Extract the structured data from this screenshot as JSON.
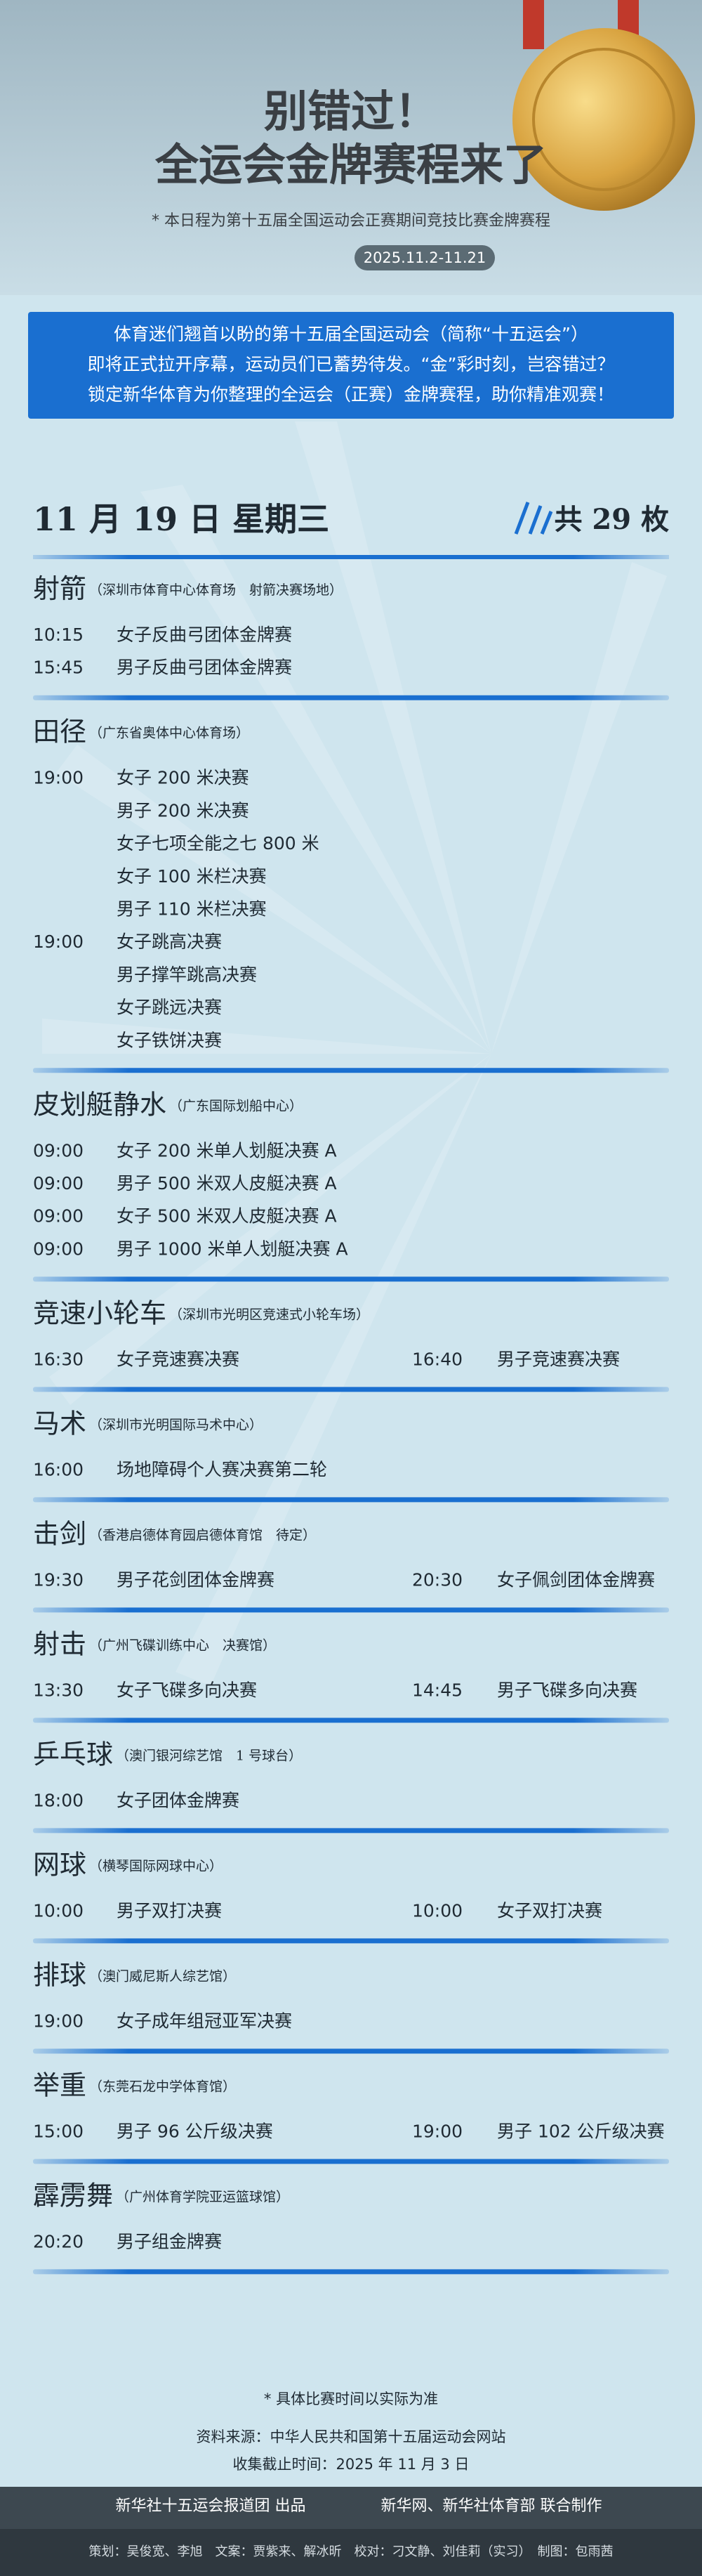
{
  "header": {
    "title_line1": "别错过！",
    "title_line2": "全运会金牌赛程来了",
    "note": "* 本日程为第十五届全国运动会正赛期间竞技比赛金牌赛程",
    "date_range": "2025.11.2-11.21"
  },
  "intro": [
    "体育迷们翘首以盼的第十五届全国运动会（简称“十五运会”）",
    "即将正式拉开序幕，运动员们已蓄势待发。“金”彩时刻，岂容错过？",
    "锁定新华体育为你整理的全运会（正赛）金牌赛程，助你精准观赛！"
  ],
  "day": {
    "date": "11 月 19 日 星期三",
    "total": "共 29 枚"
  },
  "sections": [
    {
      "sport": "射箭",
      "venue": "（深圳市体育中心体育场　射箭决赛场地）",
      "rows": [
        [
          {
            "time": "10:15",
            "event": "女子反曲弓团体金牌赛"
          }
        ],
        [
          {
            "time": "15:45",
            "event": "男子反曲弓团体金牌赛"
          }
        ]
      ]
    },
    {
      "sport": "田径",
      "venue": "（广东省奥体中心体育场）",
      "rows": [
        [
          {
            "time": "19:00",
            "event": "女子 200 米决赛"
          }
        ],
        [
          {
            "event": "男子 200 米决赛"
          }
        ],
        [
          {
            "event": "女子七项全能之七 800 米"
          }
        ],
        [
          {
            "event": "女子 100 米栏决赛"
          }
        ],
        [
          {
            "event": "男子 110 米栏决赛"
          }
        ],
        [
          {
            "time": "19:00",
            "event": "女子跳高决赛"
          }
        ],
        [
          {
            "event": "男子撑竿跳高决赛"
          }
        ],
        [
          {
            "event": "女子跳远决赛"
          }
        ],
        [
          {
            "event": "女子铁饼决赛"
          }
        ]
      ]
    },
    {
      "sport": "皮划艇静水",
      "venue": "（广东国际划船中心）",
      "rows": [
        [
          {
            "time": "09:00",
            "event": "女子 200 米单人划艇决赛 A"
          }
        ],
        [
          {
            "time": "09:00",
            "event": "男子 500 米双人皮艇决赛 A"
          }
        ],
        [
          {
            "time": "09:00",
            "event": "女子 500 米双人皮艇决赛 A"
          }
        ],
        [
          {
            "time": "09:00",
            "event": "男子 1000 米单人划艇决赛 A"
          }
        ]
      ]
    },
    {
      "sport": "竞速小轮车",
      "venue": "（深圳市光明区竞速式小轮车场）",
      "rows": [
        [
          {
            "time": "16:30",
            "event": "女子竞速赛决赛"
          },
          {
            "time": "16:40",
            "event": "男子竞速赛决赛"
          }
        ]
      ]
    },
    {
      "sport": "马术",
      "venue": "（深圳市光明国际马术中心）",
      "rows": [
        [
          {
            "time": "16:00",
            "event": "场地障碍个人赛决赛第二轮"
          }
        ]
      ]
    },
    {
      "sport": "击剑",
      "venue": "（香港启德体育园启德体育馆　待定）",
      "rows": [
        [
          {
            "time": "19:30",
            "event": "男子花剑团体金牌赛"
          },
          {
            "time": "20:30",
            "event": "女子佩剑团体金牌赛"
          }
        ]
      ]
    },
    {
      "sport": "射击",
      "venue": "（广州飞碟训练中心　决赛馆）",
      "rows": [
        [
          {
            "time": "13:30",
            "event": "女子飞碟多向决赛"
          },
          {
            "time": "14:45",
            "event": "男子飞碟多向决赛"
          }
        ]
      ]
    },
    {
      "sport": "乒乓球",
      "venue": "（澳门银河综艺馆　1 号球台）",
      "rows": [
        [
          {
            "time": "18:00",
            "event": "女子团体金牌赛"
          }
        ]
      ]
    },
    {
      "sport": "网球",
      "venue": "（横琴国际网球中心）",
      "rows": [
        [
          {
            "time": "10:00",
            "event": "男子双打决赛"
          },
          {
            "time": "10:00",
            "event": "女子双打决赛"
          }
        ]
      ]
    },
    {
      "sport": "排球",
      "venue": "（澳门威尼斯人综艺馆）",
      "rows": [
        [
          {
            "time": "19:00",
            "event": "女子成年组冠亚军决赛"
          }
        ]
      ]
    },
    {
      "sport": "举重",
      "venue": "（东莞石龙中学体育馆）",
      "rows": [
        [
          {
            "time": "15:00",
            "event": "男子 96 公斤级决赛"
          },
          {
            "time": "19:00",
            "event": "男子 102 公斤级决赛"
          }
        ]
      ]
    },
    {
      "sport": "霹雳舞",
      "venue": "（广州体育学院亚运篮球馆）",
      "rows": [
        [
          {
            "time": "20:20",
            "event": "男子组金牌赛"
          }
        ]
      ]
    }
  ],
  "notes": {
    "disclaimer": "* 具体比赛时间以实际为准",
    "source": "资料来源：中华人民共和国第十五届运动会网站",
    "deadline": "收集截止时间：2025 年 11 月 3 日"
  },
  "footer": {
    "producer": "新华社十五运会报道团 出品",
    "co_producer": "新华网、新华社体育部 联合制作",
    "credits": "策划：吴俊宽、李旭　文案：贾紫来、解冰昕　校对：刁文静、刘佳莉（实习）　制图：包雨茜"
  }
}
